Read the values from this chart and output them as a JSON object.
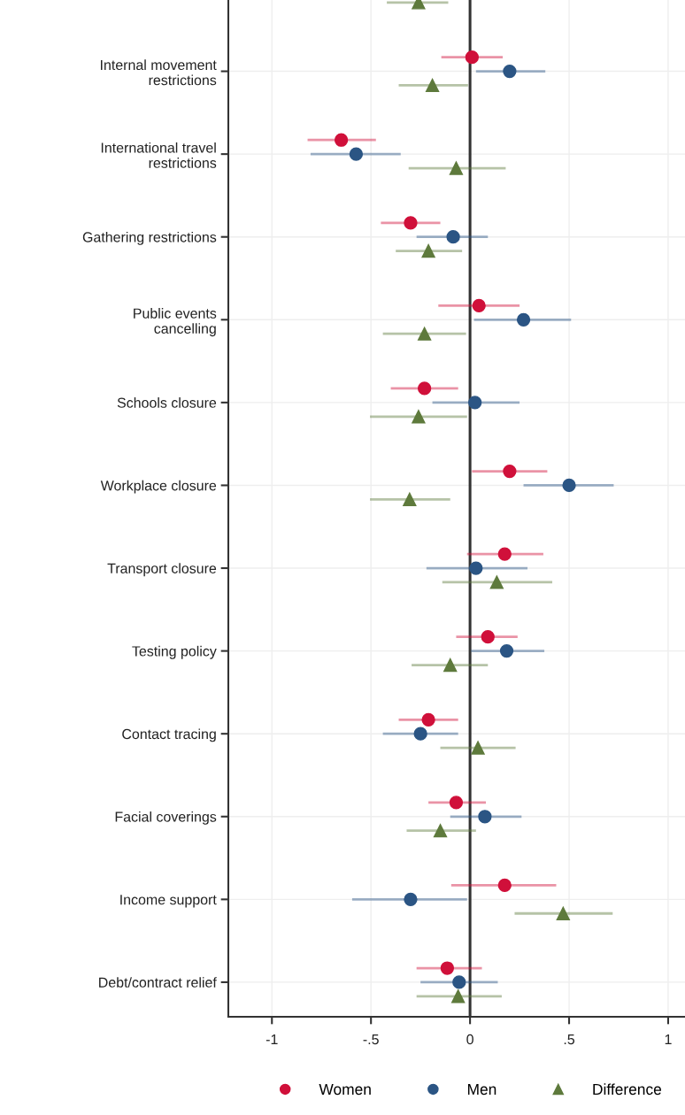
{
  "chart_data": {
    "type": "scatter",
    "orientation": "horizontal",
    "categories": [
      null,
      "Internal movement\nrestrictions",
      "International travel\nrestrictions",
      "Gathering restrictions",
      "Public events\ncancelling",
      "Schools closure",
      "Workplace closure",
      "Transport closure",
      "Testing policy",
      "Contact tracing",
      "Facial coverings",
      "Income support",
      "Debt/contract relief"
    ],
    "series": [
      {
        "name": "Women",
        "color": "#d0103a",
        "marker": "circle",
        "values": [
          null,
          0.01,
          -0.65,
          -0.3,
          0.045,
          -0.23,
          0.2,
          0.175,
          0.09,
          -0.21,
          -0.07,
          0.175,
          -0.115
        ],
        "errors": [
          null,
          [
            -0.145,
            0.165
          ],
          [
            -0.82,
            -0.475
          ],
          [
            -0.45,
            -0.15
          ],
          [
            -0.16,
            0.25
          ],
          [
            -0.4,
            -0.06
          ],
          [
            0.01,
            0.39
          ],
          [
            -0.015,
            0.37
          ],
          [
            -0.07,
            0.24
          ],
          [
            -0.36,
            -0.06
          ],
          [
            -0.21,
            0.08
          ],
          [
            -0.095,
            0.435
          ],
          [
            -0.27,
            0.06
          ]
        ]
      },
      {
        "name": "Men",
        "color": "#2b5584",
        "marker": "circle",
        "values": [
          null,
          0.2,
          -0.575,
          -0.085,
          0.27,
          0.025,
          0.5,
          0.03,
          0.185,
          -0.25,
          0.075,
          -0.3,
          -0.055
        ],
        "errors": [
          null,
          [
            0.03,
            0.38
          ],
          [
            -0.805,
            -0.35
          ],
          [
            -0.27,
            0.09
          ],
          [
            0.02,
            0.51
          ],
          [
            -0.19,
            0.25
          ],
          [
            0.27,
            0.725
          ],
          [
            -0.22,
            0.29
          ],
          [
            0.005,
            0.375
          ],
          [
            -0.44,
            -0.06
          ],
          [
            -0.1,
            0.26
          ],
          [
            -0.595,
            -0.015
          ],
          [
            -0.25,
            0.14
          ]
        ]
      },
      {
        "name": "Difference",
        "color": "#5e7a3c",
        "marker": "triangle",
        "values": [
          -0.26,
          -0.19,
          -0.07,
          -0.21,
          -0.23,
          -0.26,
          -0.305,
          0.135,
          -0.1,
          0.04,
          -0.15,
          0.47,
          -0.06
        ],
        "errors": [
          [
            -0.42,
            -0.11
          ],
          [
            -0.36,
            -0.01
          ],
          [
            -0.31,
            0.18
          ],
          [
            -0.375,
            -0.04
          ],
          [
            -0.44,
            -0.02
          ],
          [
            -0.505,
            -0.015
          ],
          [
            -0.505,
            -0.1
          ],
          [
            -0.14,
            0.415
          ],
          [
            -0.295,
            0.09
          ],
          [
            -0.15,
            0.23
          ],
          [
            -0.32,
            0.03
          ],
          [
            0.225,
            0.72
          ],
          [
            -0.27,
            0.16
          ]
        ]
      }
    ],
    "xlim": [
      -1.22,
      1.085
    ],
    "xticks": [
      -1,
      {
        "value": -0.5,
        "label": "-.5"
      },
      0,
      {
        "value": 0.5,
        "label": ".5"
      },
      1
    ],
    "ref_lines": [
      {
        "axis": "x",
        "value": 0,
        "color": "#333333"
      }
    ],
    "grid": true,
    "legend": "bottom"
  }
}
